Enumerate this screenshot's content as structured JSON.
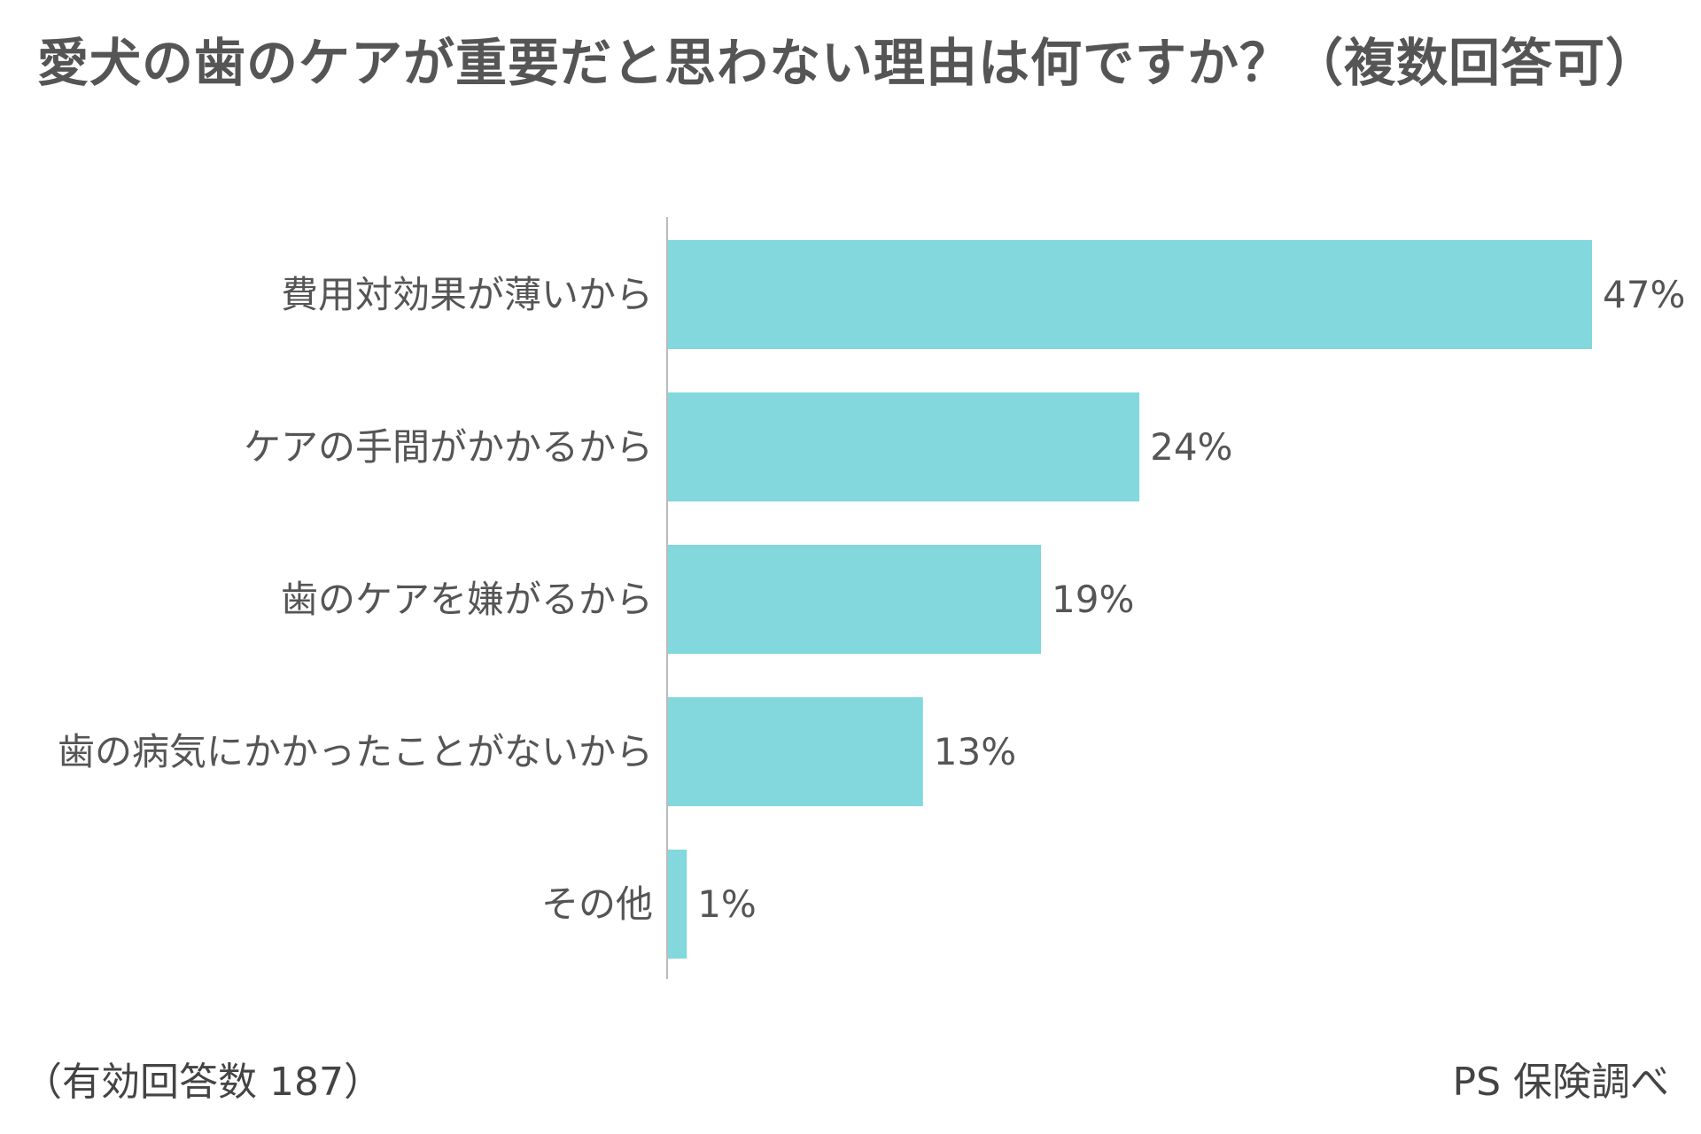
{
  "chart_data": {
    "type": "bar",
    "orientation": "horizontal",
    "title": "愛犬の歯のケアが重要だと思わない理由は何ですか？（複数回答可）",
    "categories": [
      "費用対効果が薄いから",
      "ケアの手間がかかるから",
      "歯のケアを嫌がるから",
      "歯の病気にかかったことがないから",
      "その他"
    ],
    "values": [
      47,
      24,
      19,
      13,
      1
    ],
    "value_labels": [
      "47%",
      "24%",
      "19%",
      "13%",
      "1%"
    ],
    "unit": "%",
    "xlim": [
      0,
      47
    ],
    "grid": false,
    "legend": "none",
    "bar_color": "#82d8dc",
    "axis_color": "#bbbbbb"
  },
  "footer": {
    "note": "（有効回答数 187）",
    "source": "PS 保険調べ"
  }
}
